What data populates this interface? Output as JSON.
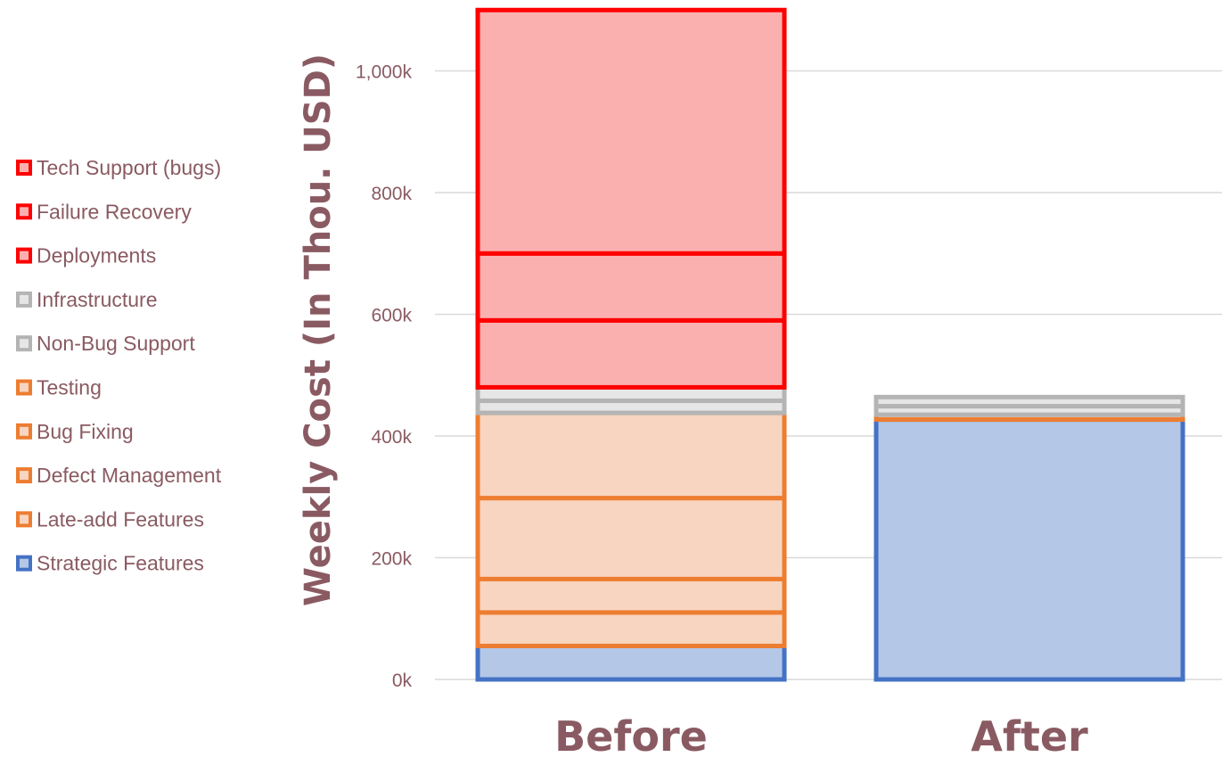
{
  "chart_data": {
    "type": "bar",
    "stacked": true,
    "categories": [
      "Before",
      "After"
    ],
    "ylabel": "Weekly Cost (In Thou. USD)",
    "ylim": [
      0,
      1100
    ],
    "yticks": [
      0,
      200,
      400,
      600,
      800,
      1000
    ],
    "ytick_labels": [
      "0k",
      "200k",
      "400k",
      "600k",
      "800k",
      "1,000k"
    ],
    "grid": true,
    "legend_position": "left",
    "series": [
      {
        "name": "Strategic Features",
        "values": [
          55,
          427
        ],
        "color": "#4472c4",
        "fill": "#b4c7e7"
      },
      {
        "name": "Late-add Features",
        "values": [
          55,
          0
        ],
        "color": "#ed7d31",
        "fill": "#f8d5c0"
      },
      {
        "name": "Defect Management",
        "values": [
          55,
          0
        ],
        "color": "#ed7d31",
        "fill": "#f8d5c0"
      },
      {
        "name": "Bug Fixing",
        "values": [
          133,
          8
        ],
        "color": "#ed7d31",
        "fill": "#f8d5c0"
      },
      {
        "name": "Testing",
        "values": [
          140,
          0
        ],
        "color": "#ed7d31",
        "fill": "#f8d5c0"
      },
      {
        "name": "Non-Bug Support",
        "values": [
          20,
          14
        ],
        "color": "#b4b4b4",
        "fill": "#e6e6e6"
      },
      {
        "name": "Infrastructure",
        "values": [
          22,
          15
        ],
        "color": "#b4b4b4",
        "fill": "#e6e6e6"
      },
      {
        "name": "Deployments",
        "values": [
          110,
          0
        ],
        "color": "#ff0000",
        "fill": "#fbb0b0"
      },
      {
        "name": "Failure Recovery",
        "values": [
          110,
          0
        ],
        "color": "#ff0000",
        "fill": "#fbb0b0"
      },
      {
        "name": "Tech Support (bugs)",
        "values": [
          400,
          0
        ],
        "color": "#ff0000",
        "fill": "#fbb0b0"
      }
    ]
  }
}
